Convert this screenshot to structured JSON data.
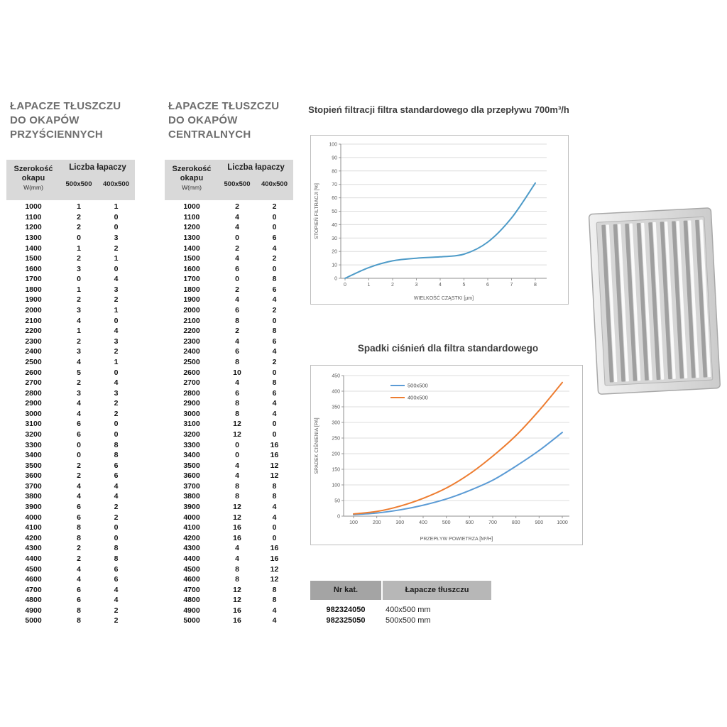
{
  "columns": {
    "col1_line1": "Szerokość",
    "col1_line2": "okapu",
    "col1_sub": "W(mm)",
    "group": "Liczba łapaczy",
    "size1": "500x500",
    "size2": "400x500"
  },
  "tables": [
    {
      "title_lines": [
        "ŁAPACZE TŁUSZCZU",
        "DO OKAPÓW",
        "PRZYŚCIENNYCH"
      ],
      "rows": [
        [
          1000,
          1,
          1
        ],
        [
          1100,
          2,
          0
        ],
        [
          1200,
          2,
          0
        ],
        [
          1300,
          0,
          3
        ],
        [
          1400,
          1,
          2
        ],
        [
          1500,
          2,
          1
        ],
        [
          1600,
          3,
          0
        ],
        [
          1700,
          0,
          4
        ],
        [
          1800,
          1,
          3
        ],
        [
          1900,
          2,
          2
        ],
        [
          2000,
          3,
          1
        ],
        [
          2100,
          4,
          0
        ],
        [
          2200,
          1,
          4
        ],
        [
          2300,
          2,
          3
        ],
        [
          2400,
          3,
          2
        ],
        [
          2500,
          4,
          1
        ],
        [
          2600,
          5,
          0
        ],
        [
          2700,
          2,
          4
        ],
        [
          2800,
          3,
          3
        ],
        [
          2900,
          4,
          2
        ],
        [
          3000,
          4,
          2
        ],
        [
          3100,
          6,
          0
        ],
        [
          3200,
          6,
          0
        ],
        [
          3300,
          0,
          8
        ],
        [
          3400,
          0,
          8
        ],
        [
          3500,
          2,
          6
        ],
        [
          3600,
          2,
          6
        ],
        [
          3700,
          4,
          4
        ],
        [
          3800,
          4,
          4
        ],
        [
          3900,
          6,
          2
        ],
        [
          4000,
          6,
          2
        ],
        [
          4100,
          8,
          0
        ],
        [
          4200,
          8,
          0
        ],
        [
          4300,
          2,
          8
        ],
        [
          4400,
          2,
          8
        ],
        [
          4500,
          4,
          6
        ],
        [
          4600,
          4,
          6
        ],
        [
          4700,
          6,
          4
        ],
        [
          4800,
          6,
          4
        ],
        [
          4900,
          8,
          2
        ],
        [
          5000,
          8,
          2
        ]
      ]
    },
    {
      "title_lines": [
        "ŁAPACZE TŁUSZCZU",
        "DO OKAPÓW",
        "CENTRALNYCH"
      ],
      "rows": [
        [
          1000,
          2,
          2
        ],
        [
          1100,
          4,
          0
        ],
        [
          1200,
          4,
          0
        ],
        [
          1300,
          0,
          6
        ],
        [
          1400,
          2,
          4
        ],
        [
          1500,
          4,
          2
        ],
        [
          1600,
          6,
          0
        ],
        [
          1700,
          0,
          8
        ],
        [
          1800,
          2,
          6
        ],
        [
          1900,
          4,
          4
        ],
        [
          2000,
          6,
          2
        ],
        [
          2100,
          8,
          0
        ],
        [
          2200,
          2,
          8
        ],
        [
          2300,
          4,
          6
        ],
        [
          2400,
          6,
          4
        ],
        [
          2500,
          8,
          2
        ],
        [
          2600,
          10,
          0
        ],
        [
          2700,
          4,
          8
        ],
        [
          2800,
          6,
          6
        ],
        [
          2900,
          8,
          4
        ],
        [
          3000,
          8,
          4
        ],
        [
          3100,
          12,
          0
        ],
        [
          3200,
          12,
          0
        ],
        [
          3300,
          0,
          16
        ],
        [
          3400,
          0,
          16
        ],
        [
          3500,
          4,
          12
        ],
        [
          3600,
          4,
          12
        ],
        [
          3700,
          8,
          8
        ],
        [
          3800,
          8,
          8
        ],
        [
          3900,
          12,
          4
        ],
        [
          4000,
          12,
          4
        ],
        [
          4100,
          16,
          0
        ],
        [
          4200,
          16,
          0
        ],
        [
          4300,
          4,
          16
        ],
        [
          4400,
          4,
          16
        ],
        [
          4500,
          8,
          12
        ],
        [
          4600,
          8,
          12
        ],
        [
          4700,
          12,
          8
        ],
        [
          4800,
          12,
          8
        ],
        [
          4900,
          16,
          4
        ],
        [
          5000,
          16,
          4
        ]
      ]
    }
  ],
  "chart_data": [
    {
      "type": "line",
      "title": "Stopień filtracji filtra standardowego dla przepływu 700m³/h",
      "xlabel": "WIELKOŚĆ CZĄSTKI [µm]",
      "ylabel": "STOPIEŃ FILTRACJI [%]",
      "xlim": [
        0,
        8
      ],
      "ylim": [
        0,
        100
      ],
      "xstep": 1,
      "ystep": 10,
      "grid": "horizontal",
      "legend": false,
      "series": [
        {
          "name": "stopień filtracji",
          "color": "#4e9bc8",
          "x": [
            0,
            1,
            2,
            3,
            4,
            5,
            6,
            7,
            8
          ],
          "y": [
            0,
            8,
            13,
            15,
            16,
            18,
            27,
            45,
            71
          ]
        }
      ]
    },
    {
      "type": "line",
      "title": "Spadki ciśnień dla filtra standardowego",
      "xlabel": "PRZEPŁYW POWIETRZA [M³/H]",
      "ylabel": "SPADEK CIŚNIENIA [PA]",
      "xlim": [
        100,
        1000
      ],
      "ylim": [
        0,
        450
      ],
      "xstep": 100,
      "ystep": 50,
      "grid": "horizontal",
      "legend": true,
      "legend_position": "top-center",
      "series": [
        {
          "name": "500x500",
          "color": "#5b9bd5",
          "x": [
            100,
            200,
            300,
            400,
            500,
            600,
            700,
            800,
            900,
            1000
          ],
          "y": [
            5,
            10,
            20,
            35,
            55,
            82,
            115,
            160,
            210,
            268
          ]
        },
        {
          "name": "400x500",
          "color": "#ed7d31",
          "x": [
            100,
            200,
            300,
            400,
            500,
            600,
            700,
            800,
            900,
            1000
          ],
          "y": [
            7,
            15,
            32,
            57,
            90,
            135,
            192,
            258,
            338,
            428
          ]
        }
      ]
    }
  ],
  "catalog": {
    "header_nr": "Nr kat.",
    "header_type": "Łapacze tłuszczu",
    "rows": [
      {
        "nr": "982324050",
        "size": "400x500 mm"
      },
      {
        "nr": "982325050",
        "size": "500x500 mm"
      }
    ]
  },
  "colors": {
    "accent_blue": "#5b9bd5",
    "accent_orange": "#ed7d31",
    "table_header_gray": "#d9d9d9",
    "title_gray": "#6e6e6e"
  }
}
